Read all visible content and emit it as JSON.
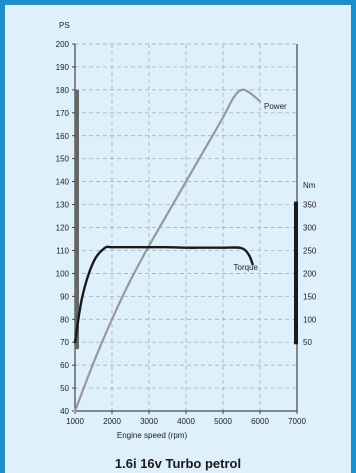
{
  "caption": "1.6i 16v Turbo petrol",
  "chart_data": {
    "type": "line",
    "xlabel": "Engine speed (rpm)",
    "xlim": [
      1000,
      7000
    ],
    "xticks": [
      1000,
      2000,
      3000,
      4000,
      5000,
      6000,
      7000
    ],
    "left_axis": {
      "unit": "PS",
      "ylim": [
        40,
        200
      ],
      "ticks": [
        40,
        50,
        60,
        70,
        80,
        90,
        100,
        110,
        120,
        130,
        140,
        150,
        160,
        170,
        180,
        190,
        200
      ]
    },
    "right_axis": {
      "unit": "Nm",
      "ylim": [
        50,
        350
      ],
      "ticks": [
        50,
        100,
        150,
        200,
        250,
        300,
        350
      ]
    },
    "grid": true,
    "series": [
      {
        "name": "Power",
        "axis": "left",
        "color": "#999999",
        "x": [
          1000,
          1500,
          2000,
          2500,
          3000,
          3500,
          4000,
          4500,
          5000,
          5300,
          5500,
          5700,
          6000
        ],
        "y": [
          40,
          61,
          80,
          97,
          112,
          126,
          140,
          154,
          168,
          177,
          180,
          179,
          175
        ]
      },
      {
        "name": "Torque",
        "axis": "right",
        "color": "#1a1a1a",
        "x": [
          1000,
          1200,
          1500,
          1800,
          2000,
          2500,
          3000,
          3500,
          4000,
          4500,
          5000,
          5500,
          5700,
          5800
        ],
        "y": [
          50,
          150,
          225,
          255,
          257,
          257,
          257,
          257,
          256,
          256,
          256,
          255,
          240,
          220
        ]
      }
    ]
  }
}
